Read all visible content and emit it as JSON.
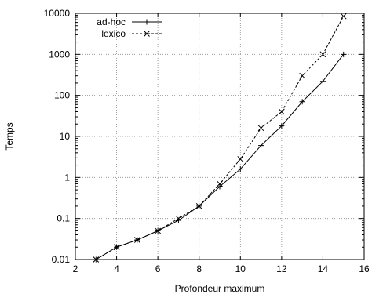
{
  "chart_data": {
    "type": "line",
    "xlabel": "Profondeur maximum",
    "ylabel": "Temps",
    "xlim": [
      2,
      16
    ],
    "ylim": [
      0.01,
      10000
    ],
    "yscale": "log",
    "grid": true,
    "legend_position": "top-left",
    "x_ticks": [
      2,
      4,
      6,
      8,
      10,
      12,
      14,
      16
    ],
    "x_tick_labels": [
      "2",
      "4",
      "6",
      "8",
      "10",
      "12",
      "14",
      "16"
    ],
    "y_ticks": [
      0.01,
      0.1,
      1,
      10,
      100,
      1000,
      10000
    ],
    "y_tick_labels": [
      "0.01",
      "0.1",
      "1",
      "10",
      "100",
      "1000",
      "10000"
    ],
    "series": [
      {
        "name": "ad-hoc",
        "line_style": "solid",
        "marker": "plus",
        "x": [
          3,
          4,
          5,
          6,
          7,
          8,
          9,
          10,
          11,
          12,
          13,
          14,
          15
        ],
        "y": [
          0.01,
          0.02,
          0.03,
          0.05,
          0.09,
          0.2,
          0.6,
          1.6,
          6,
          18,
          70,
          220,
          1000
        ]
      },
      {
        "name": "lexico",
        "line_style": "dashed",
        "marker": "cross",
        "x": [
          3,
          4,
          5,
          6,
          7,
          8,
          9,
          10,
          11,
          12,
          13,
          14,
          15
        ],
        "y": [
          0.01,
          0.02,
          0.03,
          0.05,
          0.1,
          0.2,
          0.7,
          2.8,
          16,
          40,
          300,
          1000,
          8500
        ]
      }
    ]
  }
}
